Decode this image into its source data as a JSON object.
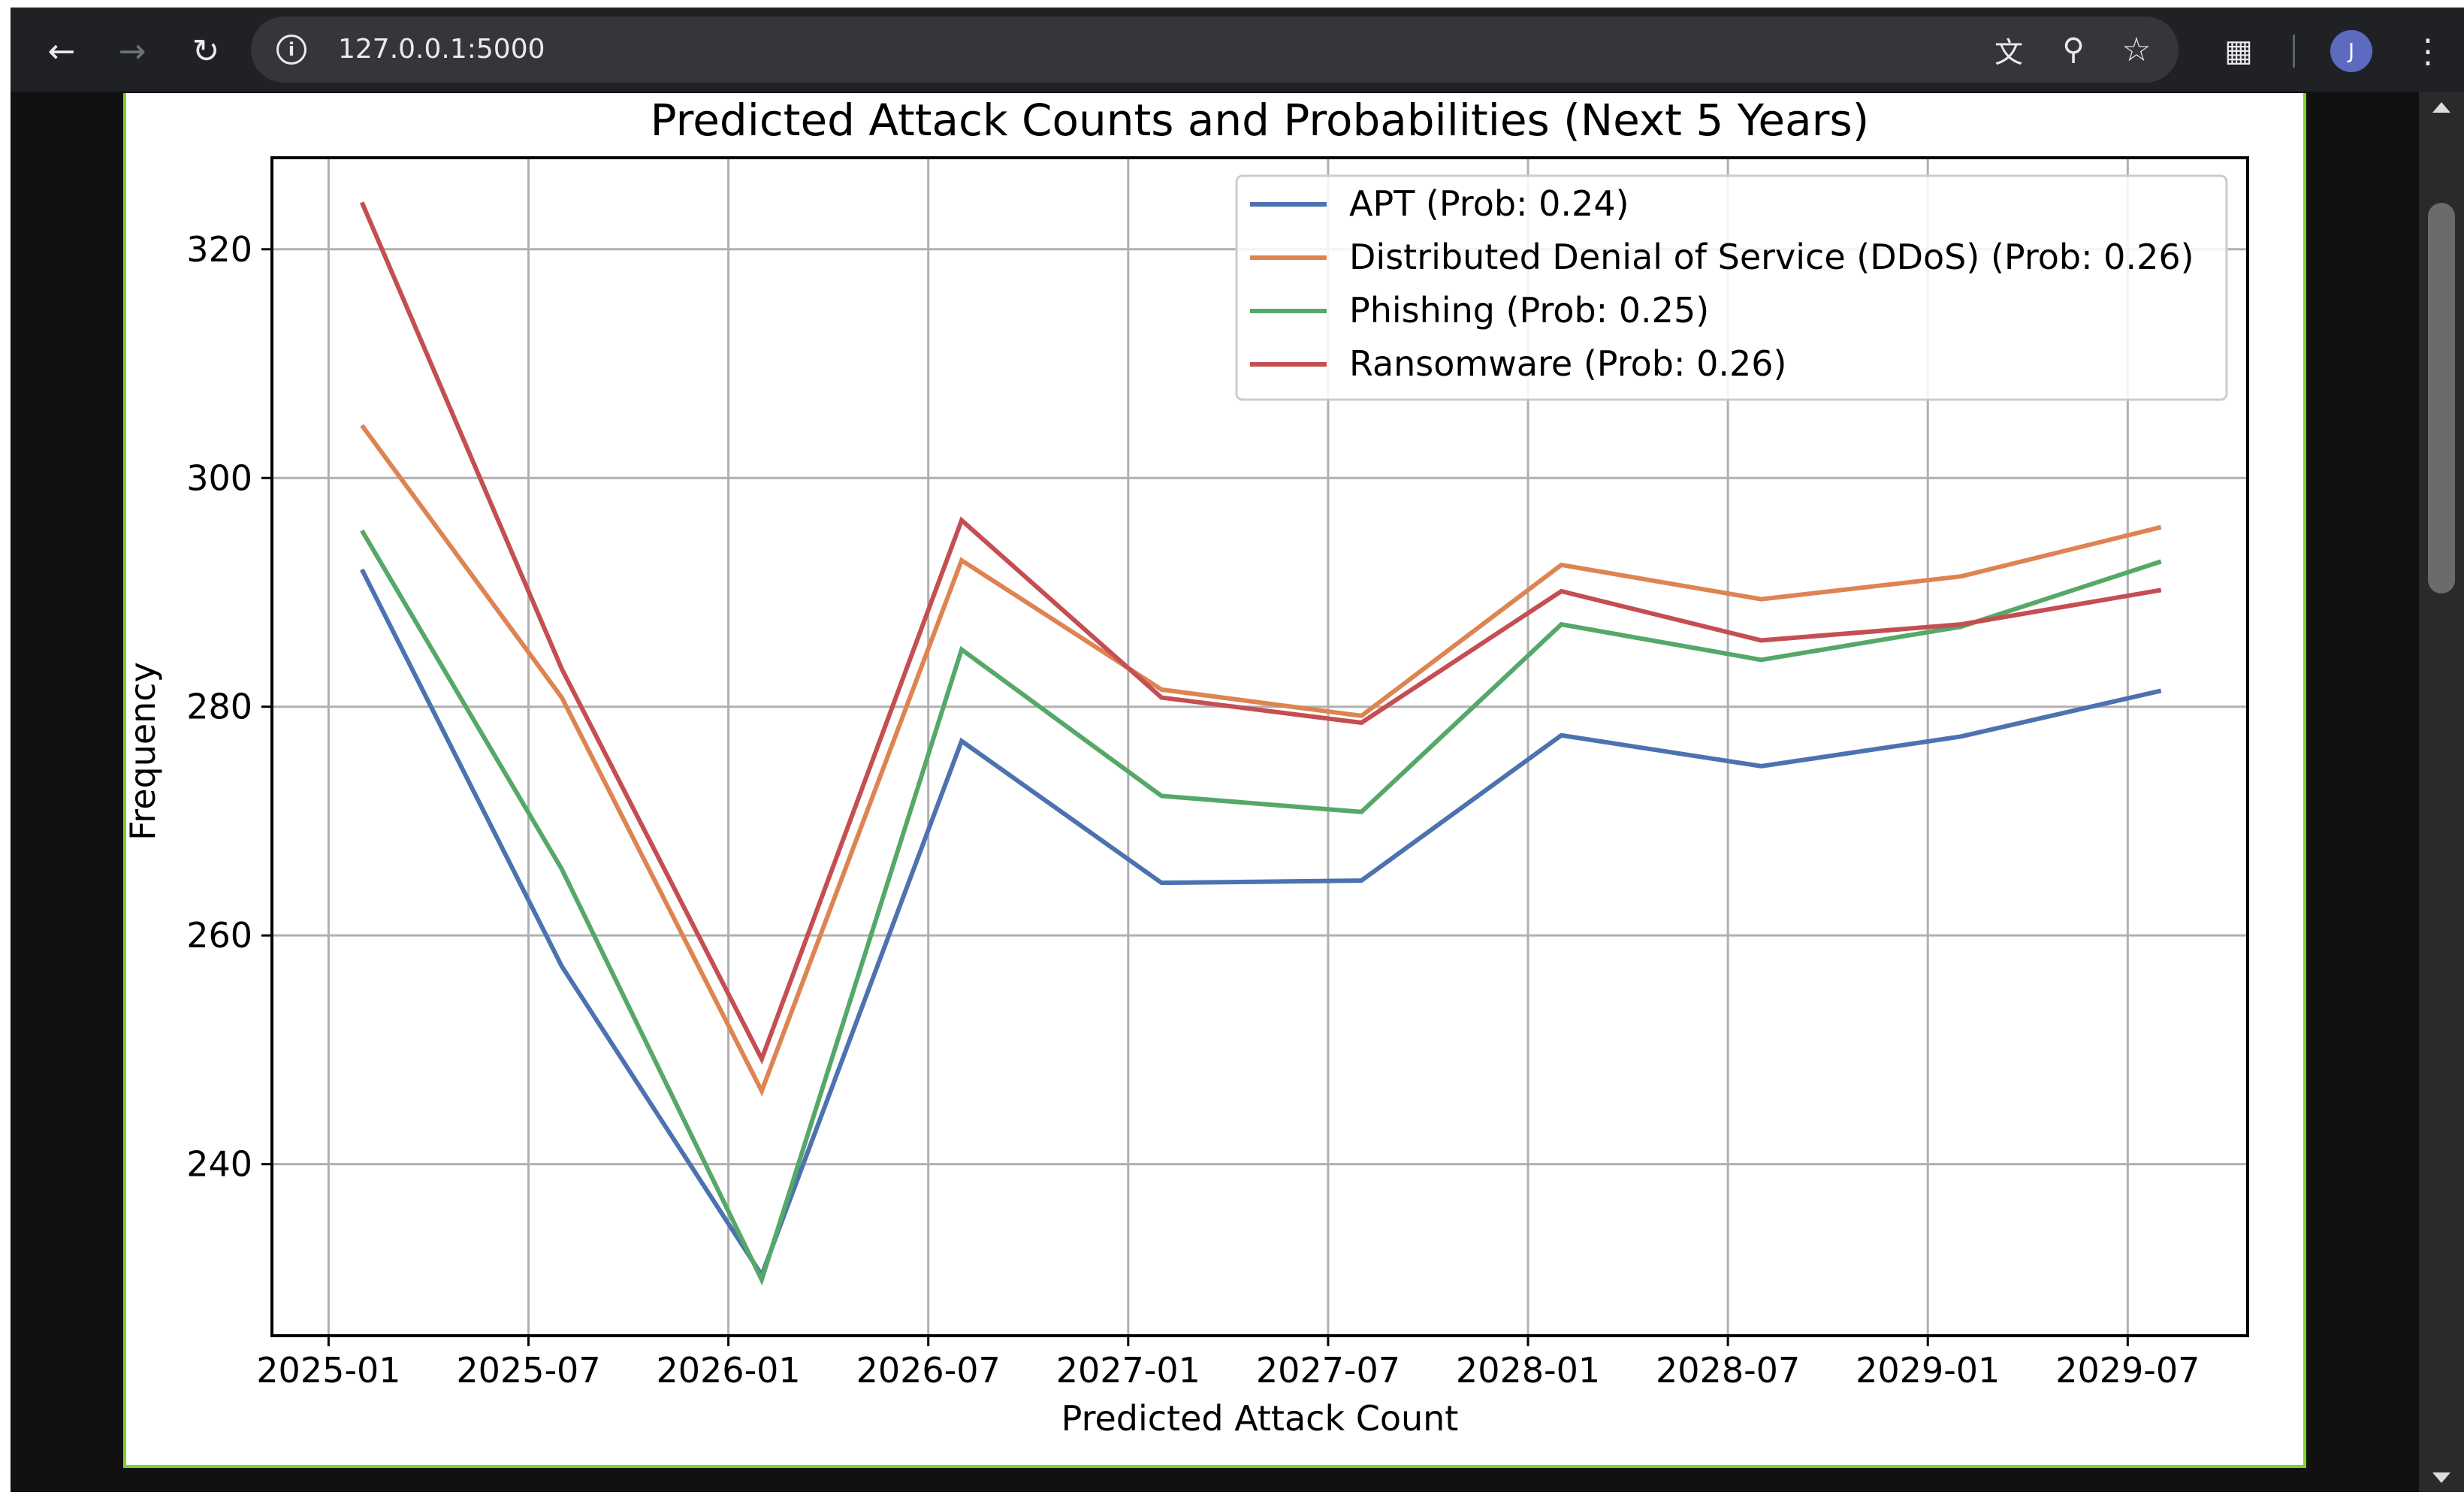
{
  "browser": {
    "url": "127.0.0.1:5000",
    "avatar_initial": "J",
    "icons": [
      "back-icon",
      "forward-icon",
      "reload-icon",
      "site-info-icon",
      "translate-icon",
      "zoom-icon",
      "star-icon",
      "extensions-icon",
      "menu-icon"
    ]
  },
  "chart_data": {
    "type": "line",
    "title": "Predicted Attack Counts and Probabilities (Next 5 Years)",
    "xlabel": "Predicted Attack Count",
    "ylabel": "Frequency",
    "x": [
      "2025-02",
      "2025-08",
      "2026-02",
      "2026-08",
      "2027-02",
      "2027-08",
      "2028-02",
      "2028-08",
      "2029-02",
      "2029-08"
    ],
    "x_numeric": [
      1.0,
      7.0,
      13.0,
      19.0,
      25.0,
      31.0,
      37.0,
      43.0,
      49.0,
      55.0
    ],
    "xticks": [
      {
        "label": "2025-01",
        "value": 0
      },
      {
        "label": "2025-07",
        "value": 6
      },
      {
        "label": "2026-01",
        "value": 12
      },
      {
        "label": "2026-07",
        "value": 18
      },
      {
        "label": "2027-01",
        "value": 24
      },
      {
        "label": "2027-07",
        "value": 30
      },
      {
        "label": "2028-01",
        "value": 36
      },
      {
        "label": "2028-07",
        "value": 42
      },
      {
        "label": "2029-01",
        "value": 48
      },
      {
        "label": "2029-07",
        "value": 54
      }
    ],
    "xlim": [
      -1.7,
      57.6
    ],
    "yticks": [
      240,
      260,
      280,
      300,
      320
    ],
    "ylim": [
      225,
      328
    ],
    "grid": true,
    "legend_position": "top-right",
    "series": [
      {
        "name": "APT (Prob: 0.24)",
        "color": "#4c72b0",
        "values": [
          292,
          257.3,
          230.3,
          277,
          264.6,
          264.8,
          277.5,
          274.8,
          277.4,
          281.4
        ]
      },
      {
        "name": "Distributed Denial of Service (DDoS) (Prob: 0.26)",
        "color": "#dd8452",
        "values": [
          304.6,
          280.8,
          246.4,
          292.8,
          281.5,
          279.2,
          292.4,
          289.4,
          291.4,
          295.7
        ]
      },
      {
        "name": "Phishing (Prob: 0.25)",
        "color": "#55a868",
        "values": [
          295.4,
          265.8,
          229.9,
          285,
          272.2,
          270.8,
          287.2,
          284.1,
          287,
          292.7
        ]
      },
      {
        "name": "Ransomware (Prob: 0.26)",
        "color": "#c44e52",
        "values": [
          324.1,
          283.3,
          249.2,
          296.3,
          280.8,
          278.6,
          290.1,
          285.8,
          287.2,
          290.2
        ]
      }
    ]
  }
}
